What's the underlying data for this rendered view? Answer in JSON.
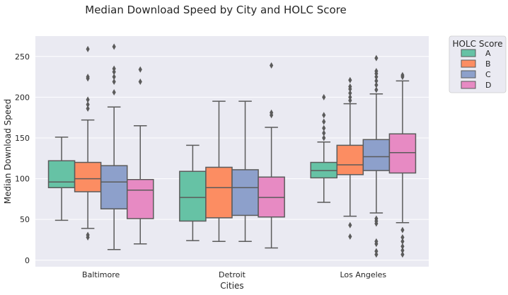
{
  "chart_data": {
    "type": "boxplot",
    "title": "Median Download Speed by City and HOLC Score",
    "xlabel": "Cities",
    "ylabel": "Median Download Speed",
    "ylim": [
      -8,
      275
    ],
    "yticks": [
      0,
      50,
      100,
      150,
      200,
      250
    ],
    "categories": [
      "Baltimore",
      "Detroit",
      "Los Angeles"
    ],
    "grid": true,
    "legend": {
      "title": "HOLC Score",
      "placement": "outside-top-right"
    },
    "series": [
      {
        "name": "A",
        "color": "#66c2a5",
        "boxes": [
          {
            "whisker_low": 49,
            "q1": 89,
            "median": 96,
            "q3": 122,
            "whisker_high": 151,
            "outliers": []
          },
          {
            "whisker_low": 24,
            "q1": 48,
            "median": 77,
            "q3": 109,
            "whisker_high": 141,
            "outliers": []
          },
          {
            "whisker_low": 71,
            "q1": 101,
            "median": 110,
            "q3": 120,
            "whisker_high": 145,
            "outliers": [
              150,
              156,
              162,
              170,
              178,
              200
            ]
          }
        ]
      },
      {
        "name": "B",
        "color": "#fc8d62",
        "boxes": [
          {
            "whisker_low": 39,
            "q1": 84,
            "median": 100,
            "q3": 120,
            "whisker_high": 172,
            "outliers": [
              28,
              31,
              186,
              191,
              197,
              223,
              225,
              259
            ]
          },
          {
            "whisker_low": 23,
            "q1": 52,
            "median": 89,
            "q3": 114,
            "whisker_high": 195,
            "outliers": []
          },
          {
            "whisker_low": 54,
            "q1": 105,
            "median": 117,
            "q3": 141,
            "whisker_high": 192,
            "outliers": [
              29,
              43,
              196,
              200,
              205,
              210,
              213,
              221
            ]
          }
        ]
      },
      {
        "name": "C",
        "color": "#8da0cb",
        "boxes": [
          {
            "whisker_low": 13,
            "q1": 63,
            "median": 96,
            "q3": 116,
            "whisker_high": 188,
            "outliers": [
              206,
              219,
              225,
              231,
              235,
              262
            ]
          },
          {
            "whisker_low": 23,
            "q1": 55,
            "median": 89,
            "q3": 111,
            "whisker_high": 195,
            "outliers": []
          },
          {
            "whisker_low": 58,
            "q1": 110,
            "median": 127,
            "q3": 148,
            "whisker_high": 204,
            "outliers": [
              7,
              11,
              20,
              23,
              45,
              48,
              51,
              209,
              215,
              220,
              225,
              229,
              232,
              248
            ]
          }
        ]
      },
      {
        "name": "D",
        "color": "#e78ac3",
        "boxes": [
          {
            "whisker_low": 20,
            "q1": 51,
            "median": 86,
            "q3": 99,
            "whisker_high": 165,
            "outliers": [
              219,
              234
            ]
          },
          {
            "whisker_low": 15,
            "q1": 53,
            "median": 77,
            "q3": 102,
            "whisker_high": 163,
            "outliers": [
              178,
              181,
              239
            ]
          },
          {
            "whisker_low": 46,
            "q1": 107,
            "median": 132,
            "q3": 155,
            "whisker_high": 220,
            "outliers": [
              7,
              12,
              17,
              23,
              28,
              37,
              225,
              227
            ]
          }
        ]
      }
    ]
  }
}
